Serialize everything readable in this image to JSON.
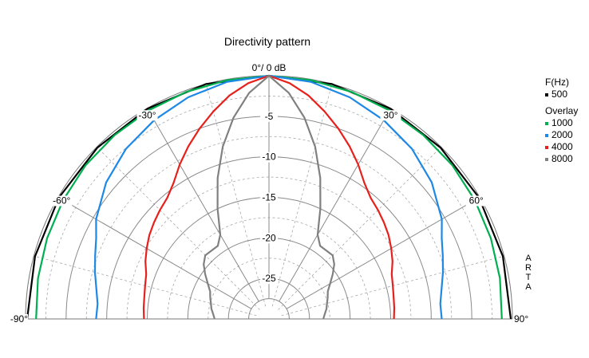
{
  "chart_data": {
    "type": "polar",
    "title": "Directivity pattern",
    "top_label": "0°/ 0 dB",
    "radial_ticks": [
      -5,
      -10,
      -15,
      -20,
      -25
    ],
    "radial_unit": "dB",
    "r_range": [
      -30,
      0
    ],
    "theta_range": [
      -90,
      90
    ],
    "angle_labels": [
      {
        "angle": -90,
        "text": "-90°"
      },
      {
        "angle": -60,
        "text": "-60°"
      },
      {
        "angle": -30,
        "text": "-30°"
      },
      {
        "angle": 30,
        "text": "30°"
      },
      {
        "angle": 60,
        "text": "60°"
      },
      {
        "angle": 90,
        "text": "90°"
      }
    ],
    "grid": true,
    "legend": {
      "placement": "right",
      "frequency_header": "F(Hz)",
      "overlay_header": "Overlay"
    },
    "series": [
      {
        "name": "500",
        "color": "#000000",
        "overlay": false,
        "angles": [
          -90,
          -75,
          -60,
          -45,
          -30,
          -15,
          0,
          15,
          30,
          45,
          60,
          75,
          90
        ],
        "values": [
          -0.2,
          -0.15,
          -0.1,
          -0.1,
          -0.05,
          0,
          0,
          0,
          -0.05,
          -0.1,
          -0.1,
          -0.15,
          -0.2
        ]
      },
      {
        "name": "1000",
        "color": "#00b050",
        "overlay": true,
        "angles": [
          -90,
          -80,
          -70,
          -60,
          -50,
          -40,
          -30,
          -20,
          -10,
          0,
          10,
          20,
          30,
          40,
          50,
          60,
          70,
          80,
          90
        ],
        "values": [
          -1.3,
          -1.1,
          -0.9,
          -0.7,
          -0.5,
          -0.4,
          -0.3,
          -0.2,
          -0.1,
          0,
          -0.1,
          -0.2,
          -0.3,
          -0.4,
          -0.5,
          -0.7,
          -0.9,
          -1.1,
          -1.3
        ]
      },
      {
        "name": "2000",
        "color": "#1e88e5",
        "overlay": true,
        "angles": [
          -90,
          -85,
          -80,
          -75,
          -70,
          -65,
          -60,
          -50,
          -40,
          -30,
          -20,
          -10,
          0,
          10,
          20,
          30,
          40,
          50,
          60,
          65,
          70,
          75,
          80,
          85,
          90
        ],
        "values": [
          -8.7,
          -8.8,
          -8.4,
          -7.8,
          -7.2,
          -6.5,
          -5.4,
          -3.8,
          -2.6,
          -1.7,
          -0.9,
          -0.3,
          0,
          -0.3,
          -0.9,
          -1.7,
          -2.6,
          -3.8,
          -5.4,
          -6.5,
          -7.2,
          -7.8,
          -8.4,
          -8.8,
          -8.7
        ]
      },
      {
        "name": "4000",
        "color": "#e8201c",
        "overlay": true,
        "angles": [
          -90,
          -85,
          -80,
          -75,
          -70,
          -65,
          -60,
          -55,
          -50,
          -45,
          -40,
          -35,
          -30,
          -25,
          -20,
          -15,
          -10,
          -5,
          0,
          5,
          10,
          15,
          20,
          25,
          30,
          35,
          40,
          45,
          50,
          55,
          60,
          65,
          70,
          75,
          80,
          85,
          90
        ],
        "values": [
          -14.6,
          -14.5,
          -14.4,
          -14.2,
          -13.9,
          -13.2,
          -12.6,
          -12.0,
          -11.5,
          -11.0,
          -10.5,
          -9.5,
          -8.0,
          -6.5,
          -5.0,
          -3.5,
          -2.0,
          -0.8,
          0,
          -0.8,
          -2.0,
          -3.5,
          -5.0,
          -6.5,
          -8.0,
          -9.5,
          -10.5,
          -11.0,
          -11.5,
          -12.0,
          -12.6,
          -13.2,
          -13.9,
          -14.2,
          -14.4,
          -14.5,
          -14.6
        ]
      },
      {
        "name": "8000",
        "color": "#808080",
        "overlay": true,
        "angles": [
          -90,
          -85,
          -80,
          -75,
          -70,
          -65,
          -60,
          -55,
          -50,
          -45,
          -40,
          -35,
          -30,
          -25,
          -20,
          -15,
          -10,
          -5,
          0,
          5,
          10,
          15,
          20,
          25,
          30,
          35,
          40,
          45,
          50,
          55,
          60,
          65,
          70,
          75,
          80,
          85,
          90
        ],
        "values": [
          -23.3,
          -23.1,
          -22.8,
          -22.6,
          -22.3,
          -22.0,
          -21.3,
          -20.4,
          -19.5,
          -18.9,
          -19.0,
          -19.0,
          -18.0,
          -15.0,
          -11.5,
          -8.0,
          -4.8,
          -2.0,
          0,
          -2.0,
          -4.8,
          -8.0,
          -11.5,
          -15.0,
          -18.0,
          -19.0,
          -19.0,
          -18.9,
          -19.5,
          -20.4,
          -21.3,
          -22.0,
          -22.3,
          -22.6,
          -22.8,
          -23.1,
          -23.3
        ]
      }
    ]
  },
  "branding": [
    "A",
    "R",
    "T",
    "A"
  ]
}
